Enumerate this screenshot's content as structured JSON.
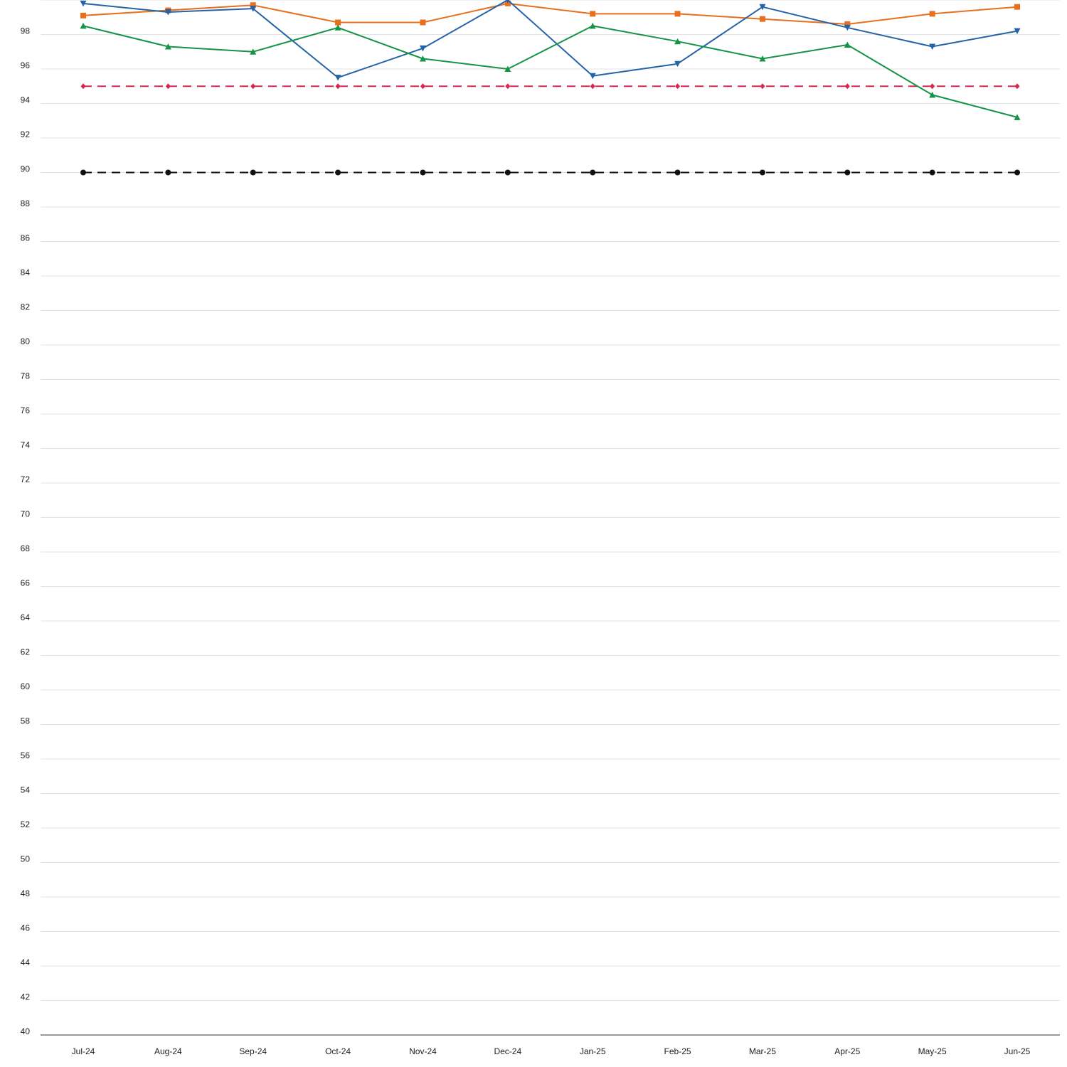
{
  "chart_data": {
    "type": "line",
    "title": "",
    "xlabel": "",
    "ylabel": "",
    "categories": [
      "Jul-24",
      "Aug-24",
      "Sep-24",
      "Oct-24",
      "Nov-24",
      "Dec-24",
      "Jan-25",
      "Feb-25",
      "Mar-25",
      "Apr-25",
      "May-25",
      "Jun-25"
    ],
    "ylim": [
      40,
      100
    ],
    "y_ticks": [
      40,
      42,
      44,
      46,
      48,
      50,
      52,
      54,
      56,
      58,
      60,
      62,
      64,
      66,
      68,
      70,
      72,
      74,
      76,
      78,
      80,
      82,
      84,
      86,
      88,
      90,
      92,
      94,
      96,
      98
    ],
    "grid": true,
    "legend": "none",
    "series": [
      {
        "color": "#e8701d",
        "marker": "square",
        "dashed": false,
        "values": [
          99.1,
          99.4,
          99.7,
          98.7,
          98.7,
          99.8,
          99.2,
          99.2,
          98.9,
          98.6,
          99.2,
          99.6
        ]
      },
      {
        "color": "#2563a8",
        "marker": "triangle-down",
        "dashed": false,
        "values": [
          99.8,
          99.3,
          99.5,
          95.5,
          97.2,
          100.0,
          95.6,
          96.3,
          99.6,
          98.4,
          97.3,
          98.2
        ]
      },
      {
        "color": "#159447",
        "marker": "triangle-up",
        "dashed": false,
        "values": [
          98.5,
          97.3,
          97.0,
          98.4,
          96.6,
          96.0,
          98.5,
          97.6,
          96.6,
          97.4,
          94.5,
          93.2
        ]
      },
      {
        "color": "#d6284f",
        "marker": "diamond",
        "dashed": true,
        "values": [
          95,
          95,
          95,
          95,
          95,
          95,
          95,
          95,
          95,
          95,
          95,
          95
        ]
      },
      {
        "color": "#111111",
        "marker": "circle",
        "dashed": true,
        "values": [
          90,
          90,
          90,
          90,
          90,
          90,
          90,
          90,
          90,
          90,
          90,
          90
        ]
      }
    ]
  }
}
